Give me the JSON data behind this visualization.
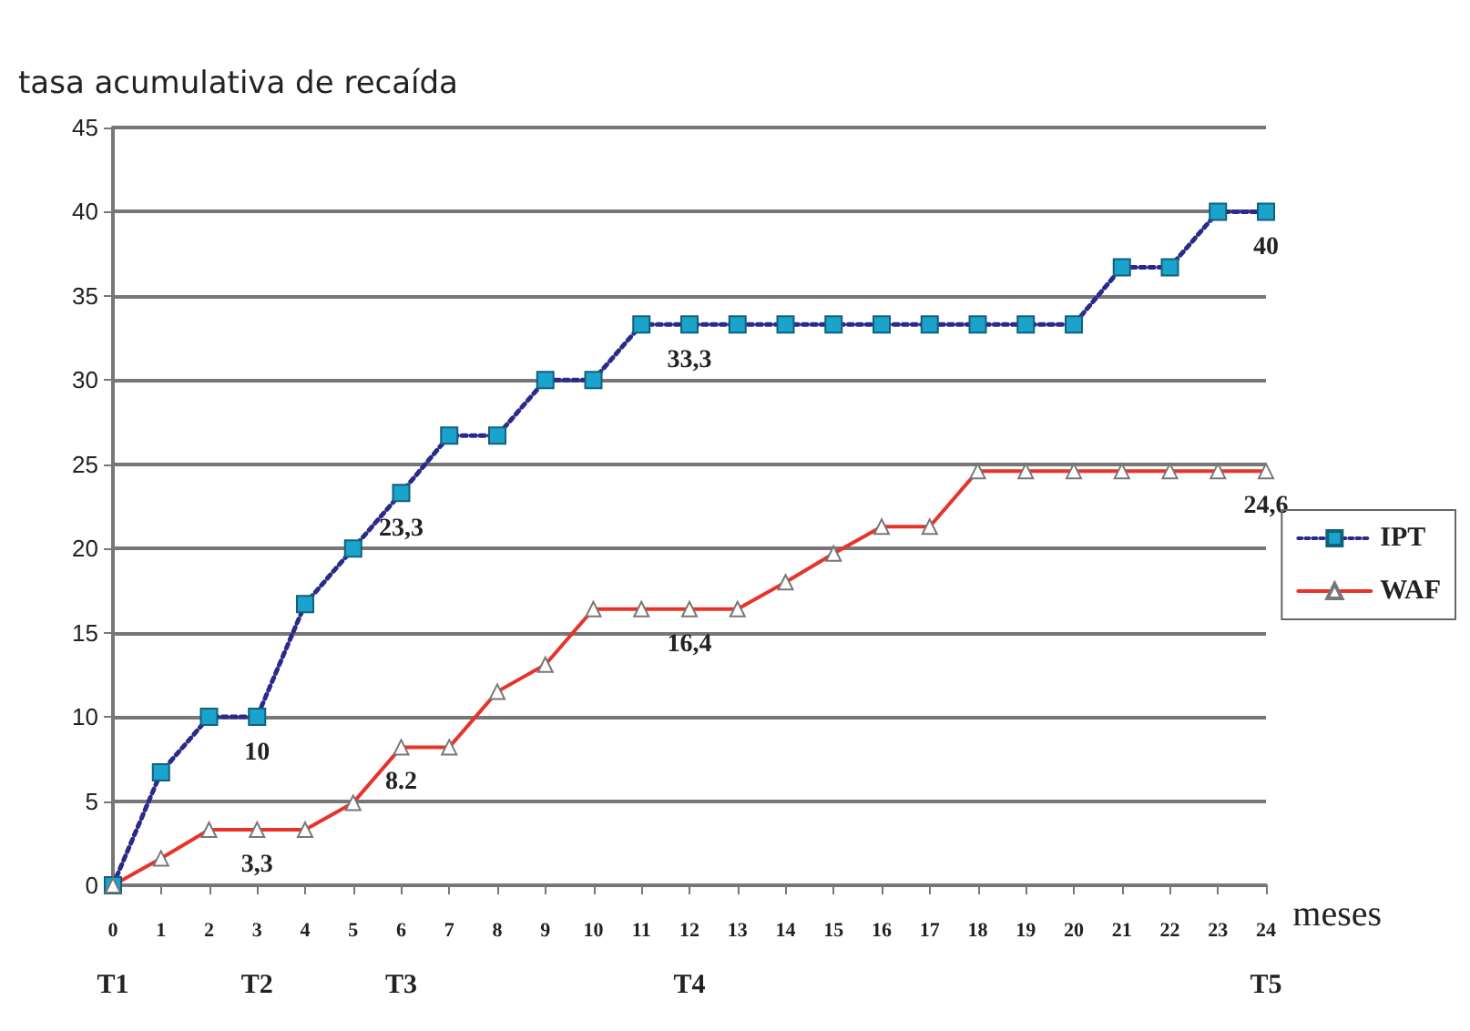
{
  "chart_data": {
    "type": "line",
    "xlabel": "meses",
    "ylabel": "tasa acumulativa de recaída",
    "categories": [
      "0\nT1",
      "1",
      "2",
      "3\nT2",
      "4",
      "5",
      "6\nT3",
      "7",
      "8",
      "9",
      "10",
      "11",
      "12\nT4",
      "13",
      "14",
      "15",
      "16",
      "17",
      "18",
      "19",
      "20",
      "21",
      "22",
      "23",
      "24\nT5"
    ],
    "series": [
      {
        "name": "IPT",
        "color": "#1aa3cc",
        "marker": "square",
        "line_style": "dotted",
        "values": [
          0,
          6.7,
          10,
          10,
          16.7,
          20,
          23.3,
          26.7,
          26.7,
          30,
          30,
          33.3,
          33.3,
          33.3,
          33.3,
          33.3,
          33.3,
          33.3,
          33.3,
          33.3,
          33.3,
          36.7,
          36.7,
          40,
          40
        ],
        "value_labels": [
          null,
          null,
          null,
          "10",
          null,
          null,
          "23,3",
          null,
          null,
          null,
          null,
          null,
          "33,3",
          null,
          null,
          null,
          null,
          null,
          null,
          null,
          null,
          null,
          null,
          null,
          "40"
        ]
      },
      {
        "name": "WAF",
        "color": "#e8332a",
        "marker": "triangle",
        "line_style": "solid",
        "values": [
          0,
          1.6,
          3.3,
          3.3,
          3.3,
          4.9,
          8.2,
          8.2,
          11.5,
          13.1,
          16.4,
          16.4,
          16.4,
          16.4,
          18,
          19.7,
          21.3,
          21.3,
          24.6,
          24.6,
          24.6,
          24.6,
          24.6,
          24.6,
          24.6
        ],
        "value_labels": [
          null,
          null,
          null,
          "3,3",
          null,
          null,
          "8.2",
          null,
          null,
          null,
          null,
          null,
          "16,4",
          null,
          null,
          null,
          null,
          null,
          null,
          null,
          null,
          null,
          null,
          null,
          "24,6"
        ]
      }
    ],
    "ylim": [
      0,
      45
    ],
    "yticks": [
      0,
      5,
      10,
      15,
      20,
      25,
      30,
      35,
      40,
      45
    ],
    "grid": "y",
    "legend": "right"
  }
}
